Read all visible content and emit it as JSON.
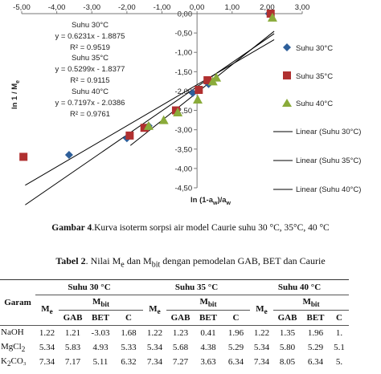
{
  "chart_data": {
    "type": "scatter",
    "xlabel_main": "ln (1-a",
    "xlabel_sub1": "w",
    "xlabel_mid": ")/a",
    "xlabel_sub2": "w",
    "ylabel_main": "ln 1 / M",
    "ylabel_sub": "e",
    "xlim": [
      -5,
      3
    ],
    "ylim": [
      -4.5,
      0
    ],
    "xticks": [
      "-5,00",
      "-4,00",
      "-3,00",
      "-2,00",
      "-1,00",
      "0,00",
      "1,00",
      "2,00",
      "3,00"
    ],
    "yticks": [
      "0,00",
      "-0,50",
      "-1,00",
      "-1,50",
      "-2,00",
      "-2,50",
      "-3,00",
      "-3,50",
      "-4,00",
      "-4,50"
    ],
    "series": [
      {
        "name": "Suhu 30°C",
        "marker": "diamond",
        "color": "#2e5f9a",
        "points": [
          [
            -3.65,
            -3.65
          ],
          [
            -2.0,
            -3.22
          ],
          [
            -1.38,
            -2.9
          ],
          [
            -0.12,
            -2.05
          ],
          [
            0.33,
            -1.82
          ],
          [
            2.05,
            0.0
          ]
        ]
      },
      {
        "name": "Suhu 35°C",
        "marker": "square",
        "color": "#b03030",
        "points": [
          [
            -4.95,
            -3.7
          ],
          [
            -1.92,
            -3.15
          ],
          [
            -1.5,
            -2.95
          ],
          [
            -0.6,
            -2.5
          ],
          [
            0.05,
            -1.97
          ],
          [
            0.3,
            -1.72
          ],
          [
            2.1,
            0.0
          ]
        ]
      },
      {
        "name": "Suhu 40°C",
        "marker": "triangle",
        "color": "#8aab3a",
        "points": [
          [
            -1.38,
            -2.9
          ],
          [
            -0.95,
            -2.75
          ],
          [
            -0.55,
            -2.55
          ],
          [
            0.02,
            -2.22
          ],
          [
            0.45,
            -1.75
          ],
          [
            0.55,
            -1.65
          ],
          [
            2.15,
            -0.1
          ]
        ]
      }
    ],
    "fits": [
      {
        "name": "Linear (Suhu 30°C)",
        "slope": 0.6231,
        "intercept": -1.8875,
        "x_range": [
          -4.9,
          2.2
        ]
      },
      {
        "name": "Linear (Suhu 35°C)",
        "slope": 0.5299,
        "intercept": -1.8377,
        "x_range": [
          -4.9,
          2.2
        ]
      },
      {
        "name": "Linear (Suhu 40°C)",
        "slope": 0.7197,
        "intercept": -2.0386,
        "x_range": [
          -1.9,
          2.2
        ]
      }
    ],
    "equations": [
      {
        "title": "Suhu 30°C",
        "eq": "y = 0.6231x - 1.8875",
        "r2": "R² = 0.9519"
      },
      {
        "title": "Suhu 35°C",
        "eq": "y = 0.5299x - 1.8377",
        "r2": "R² = 0.9115"
      },
      {
        "title": "Suhu 40°C",
        "eq": "y = 0.7197x - 2.0386",
        "r2": "R² = 0.9761"
      }
    ],
    "legend": [
      "Suhu 30°C",
      "Suhu 35°C",
      "Suhu 40°C",
      "Linear (Suhu 30°C)",
      "Linear (Suhu 35°C)",
      "Linear (Suhu 40°C)"
    ],
    "legend_position": "right",
    "grid": false
  },
  "figure_caption": {
    "label": "Gambar 4",
    "text": ".Kurva isoterm sorpsi air model Caurie suhu 30 °C, 35°C, 40 °C"
  },
  "table_caption": {
    "label": "Tabel 2",
    "text": ". Nilai M",
    "sub1": "e",
    "mid": " dan M",
    "sub2": "bit",
    "end": " dengan pemodelan GAB, BET dan Caurie"
  },
  "table": {
    "garam_header": "Garam",
    "groups": [
      "Suhu 30 °C",
      "Suhu 35 °C",
      "Suhu 40 °C"
    ],
    "me_main": "M",
    "me_sub": "e",
    "mbit_main": "M",
    "mbit_sub": "bit",
    "methods": [
      "GAB",
      "BET",
      "C"
    ],
    "rows": [
      {
        "salt": "NaOH",
        "salt_sub": "",
        "salt_end": "",
        "values": [
          "1.22",
          "1.21",
          "-3.03",
          "1.68",
          "1.22",
          "1.23",
          "0.41",
          "1.96",
          "1.22",
          "1.35",
          "1.96",
          "1."
        ]
      },
      {
        "salt": "MgCl",
        "salt_sub": "2",
        "salt_end": "",
        "values": [
          "5.34",
          "5.83",
          "4.93",
          "5.33",
          "5.34",
          "5.68",
          "4.38",
          "5.29",
          "5.34",
          "5.80",
          "5.29",
          "5.1"
        ]
      },
      {
        "salt": "K",
        "salt_sub": "2",
        "salt_end": "CO₃",
        "values": [
          "7.34",
          "7.17",
          "5.11",
          "6.32",
          "7.34",
          "7.27",
          "3.63",
          "6.34",
          "7.34",
          "8.05",
          "6.34",
          "5."
        ]
      }
    ]
  }
}
